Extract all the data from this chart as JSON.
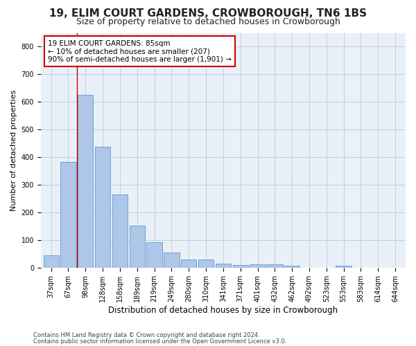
{
  "title": "19, ELIM COURT GARDENS, CROWBOROUGH, TN6 1BS",
  "subtitle": "Size of property relative to detached houses in Crowborough",
  "xlabel": "Distribution of detached houses by size in Crowborough",
  "ylabel": "Number of detached properties",
  "footnote1": "Contains HM Land Registry data © Crown copyright and database right 2024.",
  "footnote2": "Contains public sector information licensed under the Open Government Licence v3.0.",
  "categories": [
    "37sqm",
    "67sqm",
    "98sqm",
    "128sqm",
    "158sqm",
    "189sqm",
    "219sqm",
    "249sqm",
    "280sqm",
    "310sqm",
    "341sqm",
    "371sqm",
    "401sqm",
    "432sqm",
    "462sqm",
    "492sqm",
    "523sqm",
    "553sqm",
    "583sqm",
    "614sqm",
    "644sqm"
  ],
  "values": [
    47,
    383,
    625,
    438,
    265,
    153,
    93,
    55,
    30,
    30,
    17,
    12,
    14,
    14,
    8,
    0,
    0,
    9,
    0,
    0,
    0
  ],
  "bar_color": "#aec6e8",
  "bar_edge_color": "#5b9bd5",
  "background_color": "#ffffff",
  "plot_bg_color": "#eaf0f8",
  "grid_color": "#c0c8d8",
  "annotation_box_color": "#cc0000",
  "annotation_line1": "19 ELIM COURT GARDENS: 85sqm",
  "annotation_line2": "← 10% of detached houses are smaller (207)",
  "annotation_line3": "90% of semi-detached houses are larger (1,901) →",
  "red_line_x": 1.5,
  "ylim": [
    0,
    850
  ],
  "yticks": [
    0,
    100,
    200,
    300,
    400,
    500,
    600,
    700,
    800
  ],
  "title_fontsize": 11,
  "subtitle_fontsize": 9,
  "annotation_fontsize": 7.5,
  "ylabel_fontsize": 8,
  "xlabel_fontsize": 8.5,
  "tick_fontsize": 7,
  "footnote_fontsize": 6
}
